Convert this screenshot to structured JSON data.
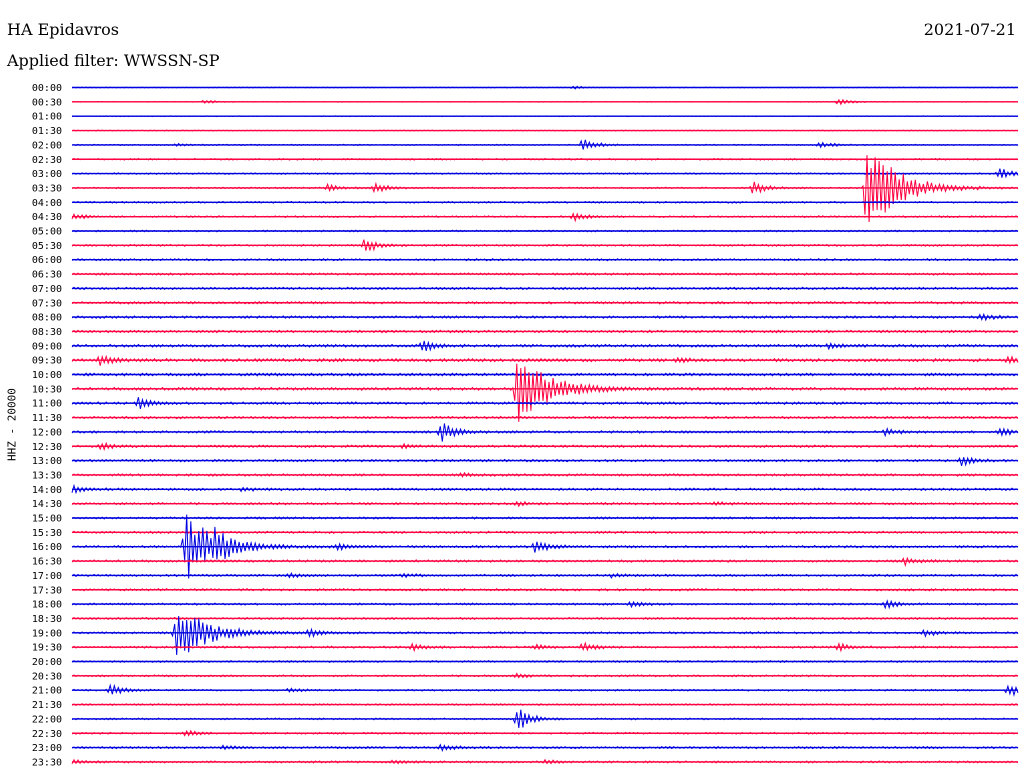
{
  "header": {
    "station": "HA Epidavros",
    "date": "2021-07-21",
    "filter": "Applied filter: WWSSN-SP"
  },
  "chart_data": {
    "type": "line",
    "title": "HA Epidavros",
    "ylabel": "HHZ - 20000",
    "colors": [
      "#0000e0",
      "#ff0040"
    ],
    "rows": [
      "00:00",
      "00:30",
      "01:00",
      "01:30",
      "02:00",
      "02:30",
      "03:00",
      "03:30",
      "04:00",
      "04:30",
      "05:00",
      "05:30",
      "06:00",
      "06:30",
      "07:00",
      "07:30",
      "08:00",
      "08:30",
      "09:00",
      "09:30",
      "10:00",
      "10:30",
      "11:00",
      "11:30",
      "12:00",
      "12:30",
      "13:00",
      "13:30",
      "14:00",
      "14:30",
      "15:00",
      "15:30",
      "16:00",
      "16:30",
      "17:00",
      "17:30",
      "18:00",
      "18:30",
      "19:00",
      "19:30",
      "20:00",
      "20:30",
      "21:00",
      "21:30",
      "22:00",
      "22:30",
      "23:00",
      "23:30"
    ],
    "noise": [
      0.5,
      0.5,
      0.5,
      0.6,
      0.8,
      1.0,
      1.0,
      1.0,
      1.1,
      1.1,
      1.1,
      1.2,
      1.3,
      1.4,
      1.5,
      1.5,
      1.6,
      1.6,
      1.8,
      2.0,
      1.8,
      1.8,
      1.6,
      1.5,
      1.5,
      1.5,
      1.5,
      1.5,
      1.5,
      1.4,
      1.4,
      1.4,
      1.5,
      1.5,
      1.4,
      1.4,
      1.3,
      1.3,
      1.3,
      1.3,
      1.2,
      1.2,
      1.1,
      1.1,
      1.1,
      1.1,
      1.4,
      1.3
    ],
    "events": [
      {
        "row": 1,
        "t": 0.14,
        "a": 4
      },
      {
        "row": 1,
        "t": 0.81,
        "a": 6
      },
      {
        "row": 0,
        "t": 0.53,
        "a": 3
      },
      {
        "row": 4,
        "t": 0.54,
        "a": 14
      },
      {
        "row": 4,
        "t": 0.79,
        "a": 7
      },
      {
        "row": 4,
        "t": 0.11,
        "a": 3
      },
      {
        "row": 6,
        "t": 0.98,
        "a": 12
      },
      {
        "row": 7,
        "t": 0.27,
        "a": 7
      },
      {
        "row": 7,
        "t": 0.32,
        "a": 10
      },
      {
        "row": 7,
        "t": 0.72,
        "a": 14
      },
      {
        "row": 7,
        "t": 0.84,
        "a": 100
      },
      {
        "row": 9,
        "t": 0.0,
        "a": 7
      },
      {
        "row": 9,
        "t": 0.53,
        "a": 10
      },
      {
        "row": 11,
        "t": 0.31,
        "a": 16
      },
      {
        "row": 16,
        "t": 0.96,
        "a": 7
      },
      {
        "row": 18,
        "t": 0.37,
        "a": 12
      },
      {
        "row": 18,
        "t": 0.8,
        "a": 6
      },
      {
        "row": 19,
        "t": 0.03,
        "a": 10
      },
      {
        "row": 19,
        "t": 0.64,
        "a": 4
      },
      {
        "row": 19,
        "t": 0.99,
        "a": 6
      },
      {
        "row": 21,
        "t": 0.47,
        "a": 85
      },
      {
        "row": 22,
        "t": 0.07,
        "a": 12
      },
      {
        "row": 24,
        "t": 0.39,
        "a": 22
      },
      {
        "row": 24,
        "t": 0.86,
        "a": 7
      },
      {
        "row": 24,
        "t": 0.98,
        "a": 9
      },
      {
        "row": 25,
        "t": 0.03,
        "a": 8
      },
      {
        "row": 25,
        "t": 0.35,
        "a": 4
      },
      {
        "row": 26,
        "t": 0.94,
        "a": 11
      },
      {
        "row": 27,
        "t": 0.41,
        "a": 4
      },
      {
        "row": 28,
        "t": 0.0,
        "a": 8
      },
      {
        "row": 28,
        "t": 0.18,
        "a": 4
      },
      {
        "row": 29,
        "t": 0.47,
        "a": 4
      },
      {
        "row": 29,
        "t": 0.68,
        "a": 4
      },
      {
        "row": 32,
        "t": 0.12,
        "a": 70
      },
      {
        "row": 32,
        "t": 0.15,
        "a": 20
      },
      {
        "row": 32,
        "t": 0.28,
        "a": 7
      },
      {
        "row": 32,
        "t": 0.49,
        "a": 14
      },
      {
        "row": 33,
        "t": 0.88,
        "a": 7
      },
      {
        "row": 34,
        "t": 0.23,
        "a": 4
      },
      {
        "row": 34,
        "t": 0.35,
        "a": 4
      },
      {
        "row": 34,
        "t": 0.57,
        "a": 4
      },
      {
        "row": 36,
        "t": 0.59,
        "a": 6
      },
      {
        "row": 36,
        "t": 0.86,
        "a": 8
      },
      {
        "row": 38,
        "t": 0.11,
        "a": 60
      },
      {
        "row": 38,
        "t": 0.25,
        "a": 8
      },
      {
        "row": 38,
        "t": 0.9,
        "a": 8
      },
      {
        "row": 39,
        "t": 0.36,
        "a": 8
      },
      {
        "row": 39,
        "t": 0.49,
        "a": 5
      },
      {
        "row": 39,
        "t": 0.54,
        "a": 9
      },
      {
        "row": 39,
        "t": 0.81,
        "a": 8
      },
      {
        "row": 41,
        "t": 0.47,
        "a": 4
      },
      {
        "row": 42,
        "t": 0.04,
        "a": 12
      },
      {
        "row": 42,
        "t": 0.23,
        "a": 4
      },
      {
        "row": 42,
        "t": 0.99,
        "a": 14
      },
      {
        "row": 44,
        "t": 0.47,
        "a": 30
      },
      {
        "row": 45,
        "t": 0.12,
        "a": 7
      },
      {
        "row": 46,
        "t": 0.16,
        "a": 5
      },
      {
        "row": 46,
        "t": 0.39,
        "a": 7
      },
      {
        "row": 47,
        "t": 0.0,
        "a": 4
      },
      {
        "row": 47,
        "t": 0.34,
        "a": 4
      },
      {
        "row": 47,
        "t": 0.5,
        "a": 4
      }
    ]
  }
}
